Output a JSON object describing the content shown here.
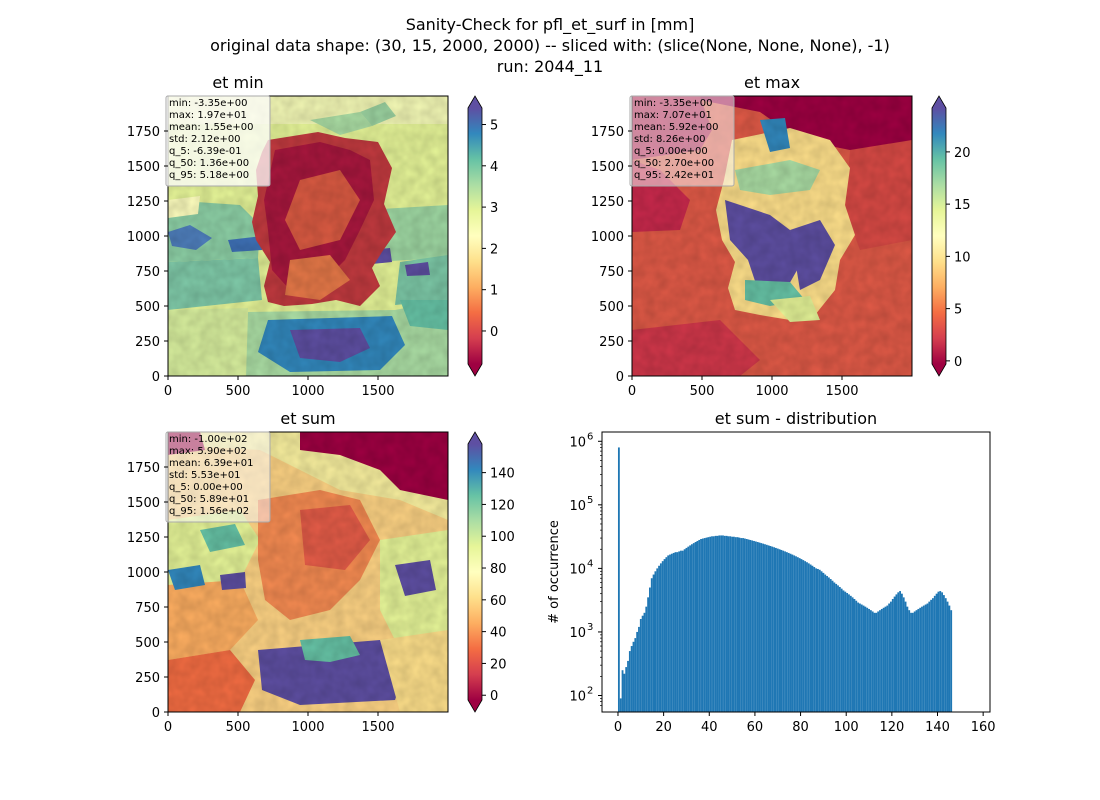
{
  "figure": {
    "suptitle_lines": [
      "Sanity-Check for pfl_et_surf in [mm]",
      "original data shape: (30, 15, 2000, 2000) -- sliced with: (slice(None, None, None), -1)",
      "run: 2044_11"
    ]
  },
  "colormap": {
    "name": "Spectral",
    "stops": [
      "#9e0142",
      "#d53e4f",
      "#f46d43",
      "#fdae61",
      "#fee08b",
      "#ffffbf",
      "#e6f598",
      "#abdda4",
      "#66c2a5",
      "#3288bd",
      "#5e4fa2"
    ]
  },
  "chart_data": [
    {
      "type": "heatmap",
      "title": "et min",
      "xlim": [
        0,
        2000
      ],
      "ylim": [
        0,
        2000
      ],
      "xticks": [
        0,
        500,
        1000,
        1500
      ],
      "yticks": [
        0,
        250,
        500,
        750,
        1000,
        1250,
        1500,
        1750
      ],
      "colorbar": {
        "min": -0.8,
        "max": 5.4,
        "ticks": [
          0,
          1,
          2,
          3,
          4,
          5
        ],
        "extend": "both"
      },
      "stats": [
        "min: -3.35e+00",
        "max: 1.97e+01",
        "mean: 1.55e+00",
        "std: 2.12e+00",
        "q_5: -6.39e-01",
        "q_50: 1.36e+00",
        "q_95: 5.18e+00"
      ]
    },
    {
      "type": "heatmap",
      "title": "et max",
      "xlim": [
        0,
        2000
      ],
      "ylim": [
        0,
        2000
      ],
      "xticks": [
        0,
        500,
        1000,
        1500
      ],
      "yticks": [
        0,
        250,
        500,
        750,
        1000,
        1250,
        1500,
        1750
      ],
      "colorbar": {
        "min": -0.3,
        "max": 24.2,
        "ticks": [
          0,
          5,
          10,
          15,
          20
        ],
        "extend": "both"
      },
      "stats": [
        "min: -3.35e+00",
        "max: 7.07e+01",
        "mean: 5.92e+00",
        "std: 8.26e+00",
        "q_5: 0.00e+00",
        "q_50: 2.70e+00",
        "q_95: 2.42e+01"
      ]
    },
    {
      "type": "heatmap",
      "title": "et sum",
      "xlim": [
        0,
        2000
      ],
      "ylim": [
        0,
        2000
      ],
      "xticks": [
        0,
        500,
        1000,
        1500
      ],
      "yticks": [
        0,
        250,
        500,
        750,
        1000,
        1250,
        1500,
        1750
      ],
      "colorbar": {
        "min": -3,
        "max": 158,
        "ticks": [
          0,
          20,
          40,
          60,
          80,
          100,
          120,
          140
        ],
        "extend": "both"
      },
      "stats": [
        "min: -1.00e+02",
        "max: 5.90e+02",
        "mean: 6.39e+01",
        "std: 5.53e+01",
        "q_5: 0.00e+00",
        "q_50: 5.89e+01",
        "q_95: 1.56e+02"
      ]
    },
    {
      "type": "bar",
      "subtype": "histogram",
      "title": "et sum - distribution",
      "ylabel": "# of occurrence",
      "xlim": [
        -7,
        163
      ],
      "xticks": [
        0,
        20,
        40,
        60,
        80,
        100,
        120,
        140,
        160
      ],
      "yscale": "log",
      "ylim": [
        55,
        1400000
      ],
      "yticks": [
        100,
        1000,
        10000,
        100000,
        1000000
      ],
      "ytick_labels": [
        {
          "base": "10",
          "exp": "2"
        },
        {
          "base": "10",
          "exp": "3"
        },
        {
          "base": "10",
          "exp": "4"
        },
        {
          "base": "10",
          "exp": "5"
        },
        {
          "base": "10",
          "exp": "6"
        }
      ],
      "color": "#1f77b4",
      "bin_width": 0.8,
      "bins_start": 0,
      "counts": [
        800000,
        90,
        250,
        220,
        280,
        350,
        500,
        600,
        700,
        800,
        1000,
        1200,
        1600,
        1800,
        2000,
        2500,
        3500,
        5000,
        7000,
        8000,
        9000,
        10000,
        11000,
        12000,
        13000,
        14000,
        15000,
        16000,
        16500,
        17000,
        17500,
        18000,
        18000,
        18500,
        19000,
        19000,
        20000,
        21000,
        22000,
        23000,
        24000,
        25000,
        26000,
        27000,
        28000,
        29000,
        29500,
        30000,
        30500,
        31000,
        31500,
        32000,
        32000,
        32500,
        32500,
        33000,
        33000,
        33000,
        32500,
        32500,
        32000,
        32000,
        31500,
        31500,
        31000,
        31000,
        30500,
        30000,
        30000,
        29500,
        29000,
        28500,
        28000,
        27500,
        27000,
        26500,
        26000,
        25500,
        25000,
        24500,
        24000,
        23500,
        23000,
        22500,
        22000,
        21500,
        21000,
        20500,
        20000,
        19500,
        19000,
        18500,
        18000,
        17500,
        17000,
        16500,
        16000,
        15500,
        15000,
        14500,
        14000,
        13500,
        13000,
        12500,
        12000,
        11500,
        11000,
        10500,
        10000,
        9800,
        9500,
        9000,
        8500,
        8000,
        7600,
        7200,
        6800,
        6400,
        6000,
        5700,
        5400,
        5100,
        4800,
        4500,
        4300,
        4100,
        3900,
        3700,
        3500,
        3300,
        3100,
        2900,
        2800,
        2700,
        2600,
        2500,
        2400,
        2300,
        2200,
        2100,
        2000,
        2000,
        2100,
        2200,
        2300,
        2400,
        2500,
        2600,
        2800,
        3000,
        3300,
        3600,
        3900,
        4200,
        4400,
        4000,
        3500,
        3000,
        2500,
        2200,
        2000,
        2000,
        2100,
        2200,
        2300,
        2400,
        2500,
        2600,
        2700,
        2800,
        3000,
        3200,
        3400,
        3700,
        4000,
        4300,
        4400,
        4200,
        3800,
        3400,
        3000,
        2600,
        2200
      ]
    }
  ]
}
